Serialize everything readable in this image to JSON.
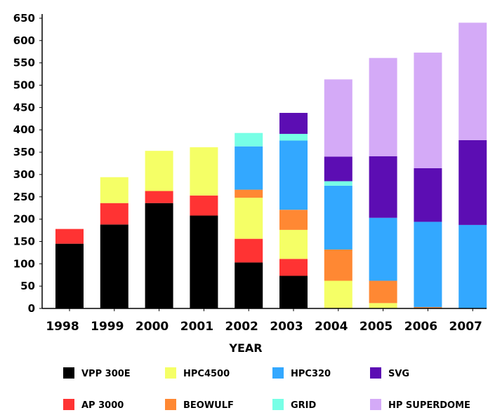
{
  "chart_data": {
    "type": "bar",
    "stacked": true,
    "xlabel": "YEAR",
    "ylabel": "",
    "ylim": [
      0,
      650
    ],
    "yticks": [
      0,
      50,
      100,
      150,
      200,
      250,
      300,
      350,
      400,
      450,
      500,
      550,
      600,
      650
    ],
    "grid": false,
    "legend_position": "bottom",
    "categories": [
      "1998",
      "1999",
      "2000",
      "2001",
      "2002",
      "2003",
      "2004",
      "2005",
      "2006",
      "2007"
    ],
    "series": [
      {
        "name": "VPP 300E",
        "color": "#000000",
        "values": [
          145,
          188,
          236,
          208,
          103,
          73,
          0,
          0,
          0,
          0
        ]
      },
      {
        "name": "AP 3000",
        "color": "#ff3333",
        "values": [
          33,
          48,
          27,
          45,
          53,
          38,
          0,
          0,
          0,
          0
        ]
      },
      {
        "name": "HPC4500",
        "color": "#f5ff66",
        "values": [
          0,
          58,
          90,
          108,
          92,
          65,
          62,
          12,
          0,
          0
        ]
      },
      {
        "name": "BEOWULF",
        "color": "#ff8833",
        "values": [
          0,
          0,
          0,
          0,
          18,
          45,
          70,
          50,
          3,
          0
        ]
      },
      {
        "name": "HPC320",
        "color": "#33a8ff",
        "values": [
          0,
          0,
          0,
          0,
          97,
          155,
          143,
          141,
          191,
          187
        ]
      },
      {
        "name": "GRID",
        "color": "#77ffe6",
        "values": [
          0,
          0,
          0,
          0,
          30,
          15,
          10,
          0,
          0,
          0
        ]
      },
      {
        "name": "SVG",
        "color": "#5c0db3",
        "values": [
          0,
          0,
          0,
          0,
          0,
          47,
          55,
          138,
          120,
          190
        ]
      },
      {
        "name": "HP SUPERDOME",
        "color": "#d4aaf7",
        "values": [
          0,
          0,
          0,
          0,
          0,
          0,
          173,
          220,
          259,
          263
        ]
      }
    ],
    "legend_rows": [
      [
        "VPP 300E",
        "HPC4500",
        "HPC320",
        "SVG"
      ],
      [
        "AP 3000",
        "BEOWULF",
        "GRID",
        "HP SUPERDOME"
      ]
    ]
  }
}
